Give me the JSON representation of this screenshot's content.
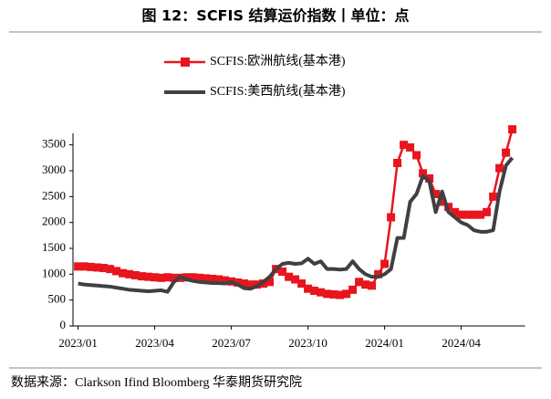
{
  "chart_data": {
    "type": "line",
    "title": "图 12：SCFIS 结算运价指数丨单位：点",
    "source": "数据来源：Clarkson Ifind Bloomberg 华泰期货研究院",
    "x": [
      0,
      0.25,
      0.5,
      0.75,
      1,
      1.25,
      1.5,
      1.75,
      2,
      2.25,
      2.5,
      2.75,
      3,
      3.25,
      3.5,
      3.75,
      4,
      4.25,
      4.5,
      4.75,
      5,
      5.25,
      5.5,
      5.75,
      6,
      6.25,
      6.5,
      6.75,
      7,
      7.25,
      7.5,
      7.75,
      8,
      8.25,
      8.5,
      8.75,
      9,
      9.25,
      9.5,
      9.75,
      10,
      10.25,
      10.5,
      10.75,
      11,
      11.25,
      11.5,
      11.75,
      12,
      12.25,
      12.5,
      12.75,
      13,
      13.25,
      13.5,
      13.75,
      14,
      14.25,
      14.5,
      14.75,
      15,
      15.25,
      15.5,
      15.75,
      16,
      16.25,
      16.5,
      16.75,
      17
    ],
    "series": [
      {
        "name": "SCFIS:欧洲航线(基本港)",
        "color": "#e8141e",
        "marker": "square",
        "values": [
          1150,
          1150,
          1140,
          1130,
          1120,
          1100,
          1060,
          1020,
          1000,
          980,
          960,
          950,
          940,
          930,
          940,
          930,
          930,
          940,
          940,
          930,
          920,
          910,
          900,
          880,
          860,
          840,
          820,
          800,
          800,
          820,
          850,
          1100,
          1050,
          950,
          900,
          820,
          720,
          680,
          650,
          620,
          610,
          600,
          620,
          700,
          850,
          800,
          780,
          1000,
          1200,
          2100,
          3150,
          3500,
          3450,
          3300,
          2950,
          2850,
          2550,
          2400,
          2300,
          2200,
          2150,
          2150,
          2150,
          2150,
          2200,
          2500,
          3050,
          3350,
          3800
        ]
      },
      {
        "name": "SCFIS:美西航线(基本港)",
        "color": "#404040",
        "values": [
          820,
          800,
          790,
          780,
          770,
          760,
          740,
          720,
          700,
          690,
          680,
          670,
          680,
          690,
          660,
          850,
          950,
          900,
          870,
          850,
          840,
          830,
          830,
          820,
          850,
          800,
          730,
          720,
          770,
          850,
          950,
          1100,
          1200,
          1220,
          1200,
          1210,
          1300,
          1200,
          1250,
          1100,
          1100,
          1090,
          1100,
          1250,
          1100,
          1000,
          950,
          950,
          1000,
          1100,
          1700,
          1700,
          2400,
          2550,
          2900,
          2800,
          2200,
          2600,
          2200,
          2100,
          2000,
          1950,
          1850,
          1820,
          1820,
          1850,
          2600,
          3100,
          3250
        ]
      }
    ],
    "xlim": [
      -0.2,
      17.5
    ],
    "xticks": [
      {
        "value": 0,
        "label": "2023/01"
      },
      {
        "value": 3,
        "label": "2023/04"
      },
      {
        "value": 6,
        "label": "2023/07"
      },
      {
        "value": 9,
        "label": "2023/10"
      },
      {
        "value": 12,
        "label": "2024/01"
      },
      {
        "value": 15,
        "label": "2024/04"
      }
    ],
    "ylim": [
      0,
      3900
    ],
    "yticks": [
      0,
      500,
      1000,
      1500,
      2000,
      2500,
      3000,
      3500
    ]
  }
}
